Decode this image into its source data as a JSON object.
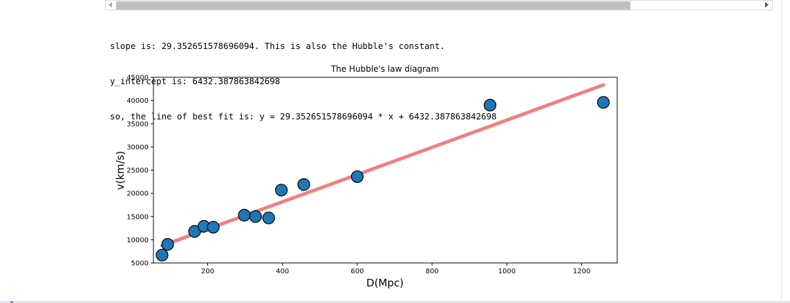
{
  "output_lines": [
    "slope is: 29.352651578696094. This is also the Hubble's constant.",
    "y_intercept is: 6432.387863842698",
    "so, the line of best fit is: y = 29.352651578696094 * x + 6432.387863842698"
  ],
  "colors": {
    "marker_fill": "#1f77b4",
    "marker_edge": "#000000",
    "fit_line": "#f08080"
  },
  "chart_data": {
    "type": "scatter",
    "title": "The Hubble's law diagram",
    "xlabel": "D(Mpc)",
    "ylabel": "v(km/s)",
    "xlim": [
      55,
      1295
    ],
    "ylim": [
      5000,
      45000
    ],
    "x_ticks": [
      200,
      400,
      600,
      800,
      1000,
      1200
    ],
    "y_ticks": [
      5000,
      10000,
      15000,
      20000,
      25000,
      30000,
      35000,
      40000,
      45000
    ],
    "x_tick_labels": [
      "200",
      "400",
      "600",
      "800",
      "1000",
      "1200"
    ],
    "y_tick_labels": [
      "5000",
      "10000",
      "15000",
      "20000",
      "25000",
      "30000",
      "35000",
      "40000",
      "45000"
    ],
    "grid": false,
    "points": [
      {
        "x": 78,
        "y": 6700
      },
      {
        "x": 93,
        "y": 9000
      },
      {
        "x": 165,
        "y": 11800
      },
      {
        "x": 190,
        "y": 12900
      },
      {
        "x": 215,
        "y": 12700
      },
      {
        "x": 298,
        "y": 15300
      },
      {
        "x": 328,
        "y": 15000
      },
      {
        "x": 363,
        "y": 14700
      },
      {
        "x": 397,
        "y": 20700
      },
      {
        "x": 457,
        "y": 21900
      },
      {
        "x": 600,
        "y": 23600
      },
      {
        "x": 955,
        "y": 39000
      },
      {
        "x": 1258,
        "y": 39600
      }
    ],
    "fit_line": {
      "slope": 29.352651578696094,
      "intercept": 6432.387863842698,
      "x_range": [
        78,
        1258
      ]
    }
  }
}
